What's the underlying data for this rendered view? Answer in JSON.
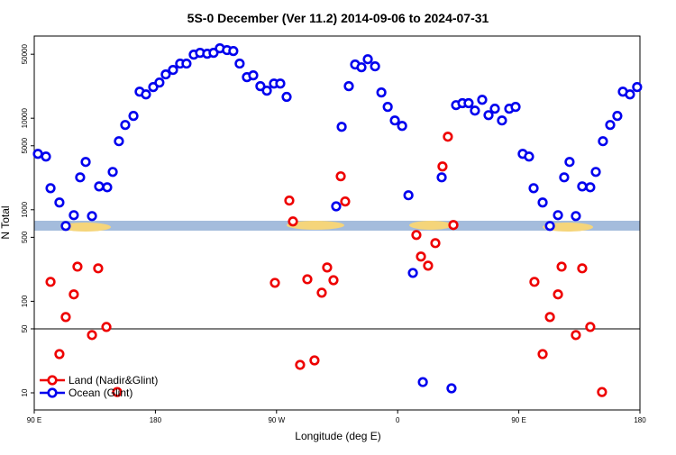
{
  "chart_data": {
    "type": "scatter",
    "title": "5S-0 December (Ver 11.2)   2014-09-06 to 2024-07-31",
    "x_label": "Longitude (deg E)",
    "y_label": "N Total",
    "log_y": true,
    "hline": 50,
    "xlim": [
      90,
      540
    ],
    "ylim": [
      6.5,
      79000
    ],
    "xticks": [
      {
        "value": 90,
        "label": "90 E"
      },
      180,
      {
        "value": 270,
        "label": "90 W"
      },
      {
        "value": 360,
        "label": "0"
      },
      {
        "value": 450,
        "label": "90 E"
      },
      {
        "value": 540,
        "label": "180"
      }
    ],
    "yticks": [
      10,
      50,
      100,
      500,
      1000,
      5000,
      10000,
      50000
    ],
    "legend": "lower left",
    "series": [
      {
        "name": "Land (Nadir&Glint)",
        "color": "#ee0000",
        "x": [
          102.1,
          108.7,
          113.4,
          119.4,
          122.1,
          132.9,
          137.5,
          143.6,
          151.6,
          268.8,
          279.5,
          282.2,
          287.5,
          292.9,
          298.2,
          303.6,
          307.6,
          312.3,
          317.7,
          321.0,
          373.9,
          377.3,
          382.6,
          388.0,
          393.3,
          397.3,
          401.4,
          461.6,
          467.7,
          473.1,
          479.1,
          481.8,
          492.4,
          497.1,
          503.1,
          511.8
        ],
        "values": [
          163,
          26.5,
          67.3,
          119,
          239,
          42.8,
          229,
          52.4,
          10.2,
          159,
          1260,
          745,
          20.2,
          174,
          22.6,
          124,
          234,
          170,
          2320,
          1230,
          530,
          308,
          245,
          432,
          2970,
          6280,
          681,
          163,
          26.5,
          67.3,
          119,
          239,
          42.8,
          229,
          52.4,
          10.2
        ]
      },
      {
        "name": "Ocean (Glint)",
        "color": "#0000ee",
        "x": [
          92.7,
          98.7,
          102.1,
          108.7,
          113.4,
          119.4,
          124.1,
          128.2,
          132.9,
          138.2,
          144.2,
          148.3,
          152.9,
          157.6,
          163.7,
          168.3,
          173.0,
          178.4,
          183.0,
          187.7,
          193.1,
          198.4,
          203.1,
          208.5,
          213.2,
          218.5,
          223.2,
          227.9,
          233.2,
          237.9,
          242.6,
          248.0,
          252.7,
          258.0,
          262.8,
          268.1,
          272.8,
          277.5,
          314.3,
          318.4,
          323.7,
          328.4,
          333.1,
          337.8,
          343.2,
          347.9,
          352.6,
          357.9,
          363.3,
          368.0,
          371.3,
          378.7,
          392.7,
          400.0,
          403.4,
          408.1,
          412.7,
          417.4,
          422.8,
          427.5,
          432.2,
          437.5,
          442.9,
          447.6,
          452.9,
          457.6,
          461.0,
          467.7,
          473.1,
          479.1,
          483.7,
          487.7,
          492.4,
          497.1,
          503.1,
          507.2,
          512.5,
          517.9,
          523.2,
          527.3,
          532.6,
          537.9
        ],
        "values": [
          4080,
          3810,
          1720,
          1200,
          665,
          873,
          2260,
          3330,
          853,
          1800,
          1760,
          2590,
          5610,
          8440,
          10600,
          19500,
          18200,
          21900,
          24500,
          30100,
          33700,
          39500,
          39500,
          49500,
          51800,
          50600,
          51800,
          58000,
          55500,
          54200,
          39500,
          28100,
          29400,
          22400,
          20000,
          23900,
          23900,
          17100,
          1090,
          8050,
          22400,
          38600,
          36000,
          44100,
          36900,
          19100,
          13300,
          9450,
          8240,
          1440,
          204,
          13.1,
          2260,
          11.2,
          13900,
          14600,
          14600,
          12100,
          15900,
          10800,
          12700,
          9450,
          12700,
          13300,
          4080,
          3810,
          1720,
          1200,
          665,
          873,
          2260,
          3330,
          853,
          1800,
          1760,
          2590,
          5610,
          8440,
          10600,
          19500,
          18200,
          21900
        ]
      }
    ]
  }
}
